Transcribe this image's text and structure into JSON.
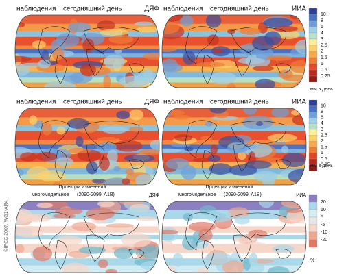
{
  "panels": [
    {
      "labels": [
        "наблюдения",
        "сегодняшний день",
        "ДЯФ"
      ]
    },
    {
      "labels": [
        "наблюдения",
        "сегодняшний день",
        "ИИА"
      ]
    },
    {
      "labels": [
        "наблюдения",
        "сегодняшний день",
        "ДЯФ"
      ]
    },
    {
      "labels": [
        "наблюдения",
        "сегодняшний день",
        "ИИА"
      ]
    },
    {
      "title": "Проекции изменений",
      "subtitle": "многомодельное",
      "period": "(2090-2099, A1B)",
      "model": "ДЯФ"
    },
    {
      "title": "Проекции изменений",
      "subtitle": "многомодельное",
      "period": "(2090-2099, A1B)",
      "model": "ИИА"
    }
  ],
  "legends": [
    {
      "ticks": [
        "10",
        "8",
        "6",
        "4",
        "3",
        "2.5",
        "2",
        "1.5",
        "1",
        "0.5",
        "0.25"
      ],
      "unit": "мм в день"
    },
    {
      "ticks": [
        "10",
        "8",
        "6",
        "4",
        "3",
        "2.5",
        "2",
        "1.5",
        "1",
        "0.5",
        "0.25"
      ],
      "unit": "мм в день"
    },
    {
      "ticks": [
        "20",
        "10",
        "5",
        "-5",
        "-10",
        "-20"
      ],
      "unit": "%"
    }
  ],
  "credit": "©IPCC 2007: WG1-AR4"
}
